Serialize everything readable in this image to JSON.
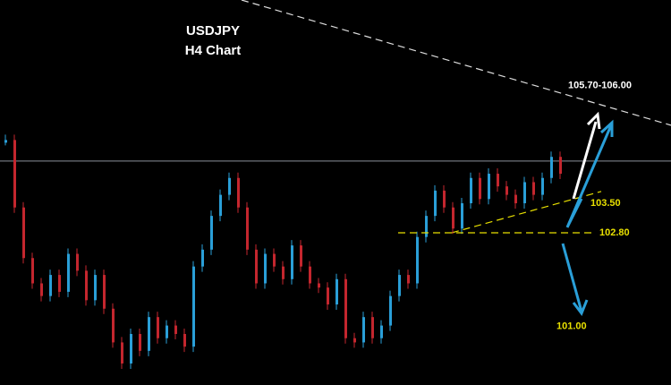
{
  "chart_data": {
    "type": "price-bars",
    "title": "USDJPY",
    "subtitle": "H4 Chart",
    "values": [
      105.0,
      103.4,
      102.2,
      101.6,
      101.3,
      101.8,
      101.4,
      102.3,
      101.9,
      101.2,
      101.8,
      101.0,
      100.2,
      99.7,
      100.4,
      100.0,
      100.8,
      100.3,
      100.6,
      100.4,
      100.1,
      102.0,
      102.4,
      103.2,
      103.7,
      104.1,
      103.4,
      102.4,
      101.6,
      102.3,
      102.0,
      101.7,
      102.5,
      102.0,
      101.6,
      101.5,
      101.1,
      101.7,
      100.3,
      100.2,
      100.8,
      100.3,
      100.6,
      101.3,
      101.8,
      101.6,
      102.7,
      103.2,
      103.8,
      103.4,
      102.9,
      103.5,
      104.1,
      103.6,
      104.2,
      103.9,
      103.7,
      103.5,
      104.0,
      103.7,
      104.1,
      104.6,
      104.2
    ],
    "up_color": "#2a9fd8",
    "down_color": "#c4262e",
    "ylim": [
      99.19,
      108.32
    ],
    "reference_line": 104.5,
    "resistance_line": [
      108.32,
      105.35
    ],
    "support_trend": [
      102.8,
      103.78
    ],
    "annotations": [
      {
        "value": 105.7,
        "label": "105.70-106.00"
      },
      {
        "value": 103.5,
        "label": "103.50"
      },
      {
        "value": 102.8,
        "label": "102.80"
      },
      {
        "value": 101,
        "label": "101.00"
      }
    ]
  }
}
